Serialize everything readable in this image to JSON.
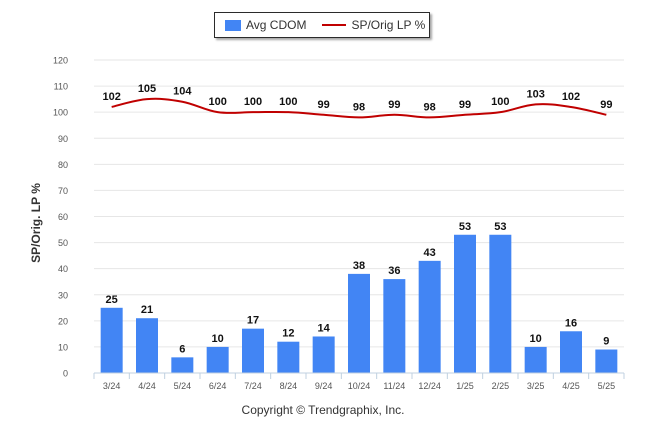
{
  "chart_data": {
    "type": "bar",
    "categories": [
      "3/24",
      "4/24",
      "5/24",
      "6/24",
      "7/24",
      "8/24",
      "9/24",
      "10/24",
      "11/24",
      "12/24",
      "1/25",
      "2/25",
      "3/25",
      "4/25",
      "5/25"
    ],
    "series": [
      {
        "name": "Avg CDOM",
        "type": "bar",
        "color": "#4285f4",
        "values": [
          25,
          21,
          6,
          10,
          17,
          12,
          14,
          38,
          36,
          43,
          53,
          53,
          10,
          16,
          9
        ]
      },
      {
        "name": "SP/Orig LP %",
        "type": "line",
        "color": "#c00000",
        "values": [
          102,
          105,
          104,
          100,
          100,
          100,
          99,
          98,
          99,
          98,
          99,
          100,
          103,
          102,
          99
        ]
      }
    ],
    "ylabel": "SP/Orig. LP %",
    "xlabel": "",
    "ylim": [
      0,
      120
    ],
    "yticks": [
      0,
      10,
      20,
      30,
      40,
      50,
      60,
      70,
      80,
      90,
      100,
      110,
      120
    ],
    "grid": true,
    "legend_position": "top-center",
    "footer": "Copyright © Trendgraphix, Inc."
  }
}
